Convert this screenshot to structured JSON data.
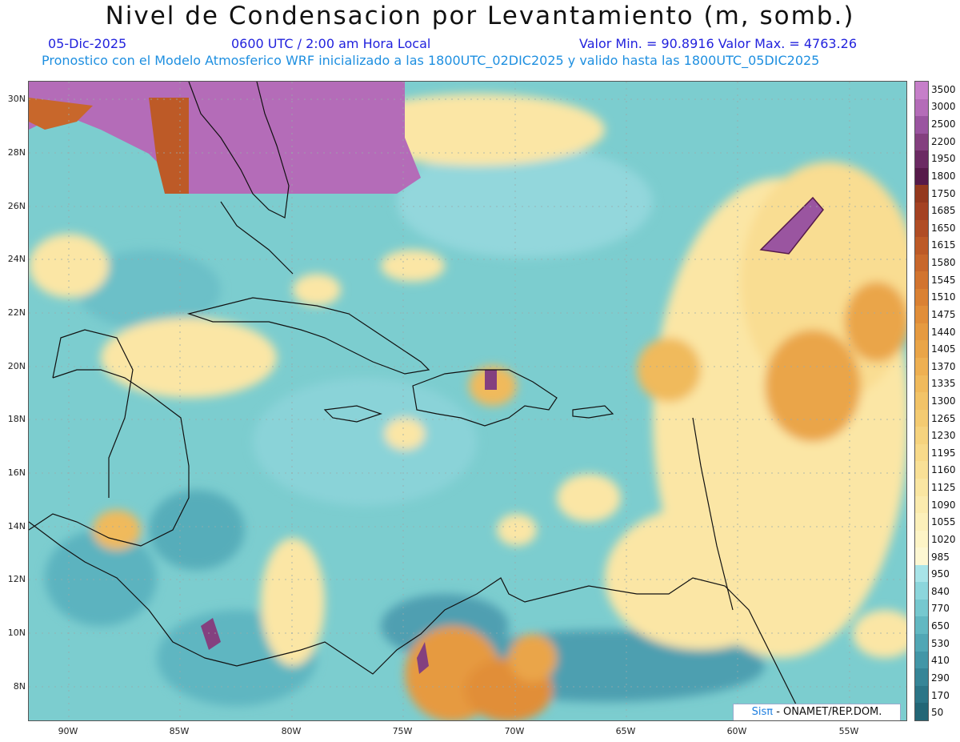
{
  "title": "Nivel de Condensacion por Levantamiento (m, somb.)",
  "date": "05-Dic-2025",
  "time": "0600 UTC / 2:00 am Hora Local",
  "minmax": "Valor Min. = 90.8916   Valor Max. = 4763.26",
  "subtitle": "Pronostico con el Modelo Atmosferico WRF inicializado a las 1800UTC_02DIC2025 y valido hasta las  1800UTC_05DIC2025",
  "credit": {
    "brand": "Sisπ",
    "text": " - ONAMET/REP.DOM."
  },
  "lat_labels": [
    "30N",
    "28N",
    "26N",
    "24N",
    "22N",
    "20N",
    "18N",
    "16N",
    "14N",
    "12N",
    "10N",
    "8N"
  ],
  "lon_labels": [
    "90W",
    "85W",
    "80W",
    "75W",
    "70W",
    "65W",
    "60W",
    "55W"
  ],
  "colorbar": {
    "labels": [
      "3500",
      "3000",
      "2500",
      "2200",
      "1950",
      "1800",
      "1750",
      "1685",
      "1650",
      "1615",
      "1580",
      "1545",
      "1510",
      "1475",
      "1440",
      "1405",
      "1370",
      "1335",
      "1300",
      "1265",
      "1230",
      "1195",
      "1160",
      "1125",
      "1090",
      "1055",
      "1020",
      "985",
      "950",
      "840",
      "770",
      "650",
      "530",
      "410",
      "290",
      "170",
      "50"
    ],
    "colors": [
      "#c67fc9",
      "#b46cb8",
      "#9a55a0",
      "#84407f",
      "#6b2a63",
      "#561a4a",
      "#94391e",
      "#a44222",
      "#b04d25",
      "#bd5a27",
      "#c8672b",
      "#d2742f",
      "#da8133",
      "#e18e39",
      "#e69a40",
      "#eaa548",
      "#eeb052",
      "#f0ba5c",
      "#f2c367",
      "#f4cb72",
      "#f6d37e",
      "#f8da8a",
      "#f9e096",
      "#fae6a2",
      "#fbebae",
      "#fcf0ba",
      "#fdf4c6",
      "#fdf7d2",
      "#a8e4e8",
      "#8cd6dc",
      "#76c8cf",
      "#62b8c2",
      "#51a7b5",
      "#4296a7",
      "#368597",
      "#2b7587",
      "#226676"
    ]
  }
}
